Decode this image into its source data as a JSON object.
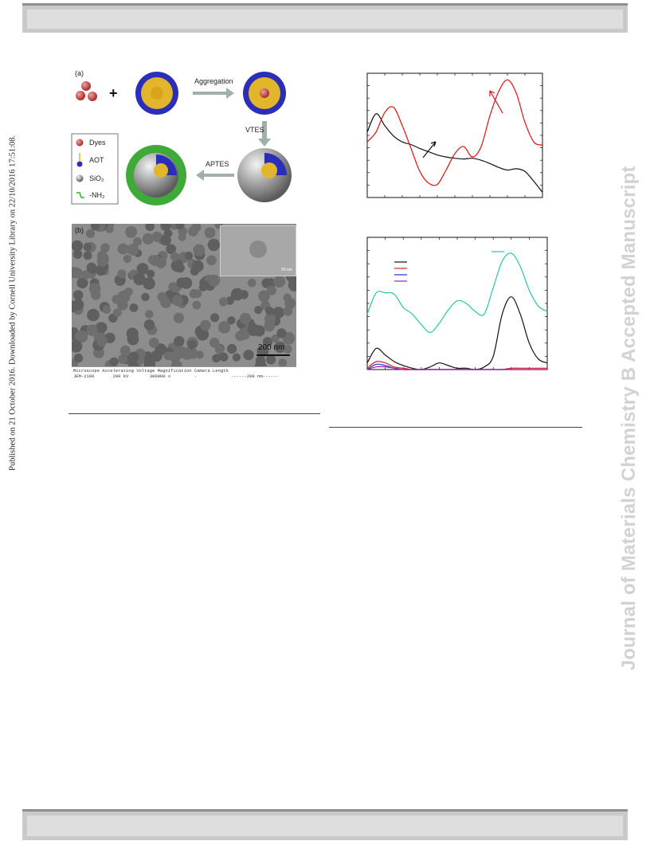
{
  "sidebar": {
    "published_note": "Published on 21 October 2016. Downloaded by Cornell University Library on 22/10/2016 17:51:08.",
    "journal_watermark": "Journal of Materials Chemistry B Accepted Manuscript"
  },
  "scheme": {
    "panel_label": "(a)",
    "plus_sign": "+",
    "step_aggregation": "Aggregation",
    "step_vtes": "VTES",
    "step_aptes": "APTES",
    "legend": [
      {
        "label": "Dyes",
        "icon": "red-sphere-icon"
      },
      {
        "label": "AOT",
        "icon": "surfactant-icon"
      },
      {
        "label": "SiO₂",
        "icon": "grey-sphere-icon"
      },
      {
        "label": "-NH₂",
        "icon": "amine-icon"
      }
    ],
    "colors": {
      "dye": "#c0393b",
      "aot_head": "#2b2fb8",
      "aot_tail": "#e2b62a",
      "silica": "#8a8a8a",
      "amine": "#3faa3a"
    }
  },
  "tem": {
    "panel_label": "(b)",
    "inset_scale": "50 nm",
    "scale_bar": "200 nm",
    "meta_header": "Microscope Accelerating Voltage Magnification Camera Length",
    "meta_values": "JEM-2100       200 kV        300000 x         -             ------200 nm------"
  },
  "chart_data": [
    {
      "type": "line",
      "title": "",
      "xlabel": "",
      "ylabel": "",
      "x": [
        0,
        5,
        10,
        15,
        20,
        25,
        30,
        35,
        40,
        45,
        50,
        55,
        60,
        65,
        70,
        75,
        80,
        85,
        90,
        95,
        100
      ],
      "series": [
        {
          "color": "#111111",
          "values": [
            0.3,
            0.58,
            0.4,
            0.24,
            0.15,
            0.11,
            0.05,
            0.0,
            -0.05,
            -0.08,
            -0.1,
            -0.11,
            -0.1,
            -0.13,
            -0.18,
            -0.24,
            -0.28,
            -0.26,
            -0.3,
            -0.45,
            -0.62
          ]
        },
        {
          "color": "#e01010",
          "values": [
            0.15,
            0.3,
            0.6,
            0.68,
            0.4,
            0.05,
            -0.3,
            -0.48,
            -0.5,
            -0.28,
            -0.03,
            0.08,
            -0.08,
            0.08,
            0.55,
            0.92,
            1.1,
            0.9,
            0.45,
            0.15,
            0.1
          ]
        }
      ],
      "annotations": [
        {
          "type": "arrow",
          "color": "#111111",
          "direction": "up-right"
        },
        {
          "type": "arrow",
          "color": "#e01010",
          "direction": "up-left"
        }
      ],
      "ylim": [
        -0.7,
        1.2
      ],
      "grid": false
    },
    {
      "type": "line",
      "title": "",
      "xlabel": "",
      "ylabel": "",
      "x": [
        0,
        5,
        10,
        15,
        20,
        25,
        30,
        35,
        40,
        45,
        50,
        55,
        60,
        65,
        70,
        75,
        80,
        85,
        90,
        95,
        100
      ],
      "series": [
        {
          "color": "#2bc4a6",
          "values": [
            0.42,
            0.58,
            0.58,
            0.57,
            0.47,
            0.42,
            0.34,
            0.28,
            0.35,
            0.45,
            0.52,
            0.5,
            0.44,
            0.42,
            0.62,
            0.82,
            0.88,
            0.78,
            0.6,
            0.48,
            0.44
          ]
        },
        {
          "color": "#111111",
          "values": [
            0.05,
            0.16,
            0.11,
            0.06,
            0.03,
            0.01,
            0.0,
            0.02,
            0.05,
            0.03,
            0.01,
            0.01,
            0.0,
            0.02,
            0.1,
            0.42,
            0.55,
            0.42,
            0.2,
            0.08,
            0.05
          ]
        },
        {
          "color": "#d42020",
          "values": [
            0.01,
            0.06,
            0.05,
            0.02,
            0.01,
            0.0,
            0.0,
            0.0,
            0.0,
            0.0,
            0.0,
            0.0,
            0.0,
            0.0,
            0.0,
            0.0,
            0.01,
            0.01,
            0.01,
            0.01,
            0.01
          ]
        },
        {
          "color": "#1f2fd0",
          "values": [
            0.0,
            0.04,
            0.03,
            0.01,
            0.0,
            0.0,
            0.0,
            0.0,
            0.0,
            0.0,
            0.0,
            0.0,
            0.0,
            0.0,
            0.0,
            0.0,
            0.0,
            0.0,
            0.0,
            0.0,
            0.0
          ]
        },
        {
          "color": "#a01ca5",
          "values": [
            0.0,
            0.02,
            0.02,
            0.01,
            0.0,
            0.0,
            0.0,
            0.0,
            0.0,
            0.0,
            0.0,
            0.0,
            0.0,
            0.0,
            0.0,
            0.0,
            0.0,
            0.0,
            0.0,
            0.0,
            0.0
          ]
        }
      ],
      "ylim": [
        0,
        1.0
      ],
      "grid": false
    }
  ]
}
